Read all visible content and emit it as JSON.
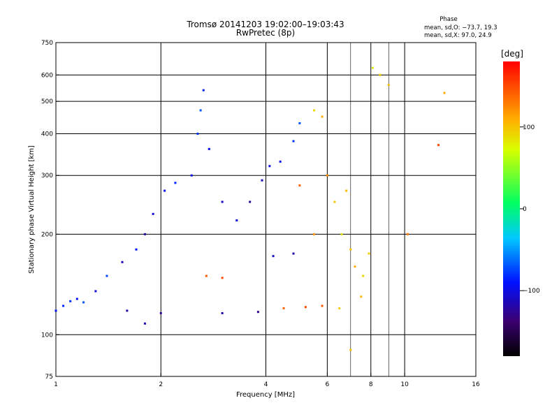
{
  "chart_data": {
    "type": "scatter",
    "title": "Tromsø 20141203 19:02:00–19:03:43",
    "subtitle": "RwPretec (8p)",
    "xlabel": "Frequency [MHz]",
    "ylabel": "Stationary phase Virtual Height [km]",
    "x_scale": "log",
    "y_scale": "log",
    "xlim": [
      1,
      16
    ],
    "ylim": [
      75,
      750
    ],
    "x_ticks": [
      1,
      2,
      4,
      6,
      8,
      10,
      16
    ],
    "x_tick_labels": [
      "1",
      "2",
      "4",
      "6",
      "8",
      "10",
      "16"
    ],
    "x_grid": [
      2,
      4,
      6,
      8,
      10
    ],
    "x_minor_grid": [
      7,
      9
    ],
    "y_ticks": [
      75,
      100,
      200,
      300,
      400,
      500,
      600,
      750
    ],
    "y_tick_labels": [
      "75",
      "100",
      "200",
      "300",
      "400",
      "500",
      "600",
      "750"
    ],
    "y_grid": [
      100,
      200,
      300,
      400,
      500,
      600
    ],
    "grid": true,
    "phase_box": {
      "title": "Phase",
      "line1": "mean, sd,O: −73.7, 19.3",
      "line2": "mean, sd,X:  97.0, 24.9"
    },
    "colorbar": {
      "label": "[deg]",
      "range": [
        -180,
        180
      ],
      "ticks": [
        100,
        0,
        -100
      ],
      "tick_labels": [
        "100",
        "0",
        "−100"
      ],
      "colormap": "rainbow"
    },
    "series": [
      {
        "comment_role": "traces",
        "points": [
          [
            1.0,
            118,
            -90
          ],
          [
            1.05,
            122,
            -85
          ],
          [
            1.1,
            126,
            -80
          ],
          [
            1.15,
            128,
            -95
          ],
          [
            1.2,
            125,
            -70
          ],
          [
            1.3,
            135,
            -100
          ],
          [
            1.4,
            150,
            -75
          ],
          [
            1.55,
            165,
            -110
          ],
          [
            1.7,
            180,
            -90
          ],
          [
            1.8,
            200,
            -120
          ],
          [
            1.9,
            230,
            -105
          ],
          [
            2.05,
            270,
            -95
          ],
          [
            2.2,
            285,
            -85
          ],
          [
            2.45,
            300,
            -100
          ],
          [
            2.55,
            400,
            -80
          ],
          [
            2.6,
            470,
            -70
          ],
          [
            2.65,
            540,
            -85
          ],
          [
            2.75,
            360,
            -95
          ],
          [
            3.0,
            250,
            -110
          ],
          [
            3.3,
            220,
            -100
          ],
          [
            3.6,
            250,
            -120
          ],
          [
            3.9,
            290,
            -110
          ],
          [
            4.1,
            320,
            -100
          ],
          [
            4.4,
            330,
            -95
          ],
          [
            4.8,
            380,
            -80
          ],
          [
            5.0,
            430,
            -70
          ],
          [
            5.5,
            470,
            90
          ],
          [
            5.8,
            450,
            110
          ],
          [
            6.0,
            300,
            120
          ],
          [
            6.3,
            250,
            95
          ],
          [
            6.6,
            200,
            85
          ],
          [
            6.8,
            270,
            105
          ],
          [
            7.0,
            180,
            100
          ],
          [
            7.2,
            160,
            110
          ],
          [
            7.6,
            150,
            90
          ],
          [
            7.9,
            175,
            95
          ],
          [
            8.1,
            630,
            80
          ],
          [
            8.5,
            600,
            95
          ],
          [
            9.0,
            560,
            100
          ],
          [
            13.0,
            530,
            110
          ],
          [
            1.6,
            118,
            -120
          ],
          [
            2.0,
            116,
            -125
          ],
          [
            3.0,
            116,
            -120
          ],
          [
            3.8,
            117,
            -125
          ],
          [
            4.5,
            120,
            140
          ],
          [
            5.2,
            121,
            150
          ],
          [
            5.8,
            122,
            145
          ],
          [
            6.5,
            120,
            95
          ],
          [
            7.5,
            130,
            105
          ],
          [
            2.7,
            150,
            145
          ],
          [
            3.0,
            148,
            150
          ],
          [
            4.2,
            172,
            -110
          ],
          [
            4.8,
            175,
            -120
          ],
          [
            5.5,
            200,
            120
          ],
          [
            5.0,
            280,
            140
          ],
          [
            1.8,
            108,
            -115
          ],
          [
            7.0,
            90,
            100
          ],
          [
            12.5,
            370,
            150
          ],
          [
            10.2,
            200,
            130
          ]
        ]
      }
    ]
  }
}
